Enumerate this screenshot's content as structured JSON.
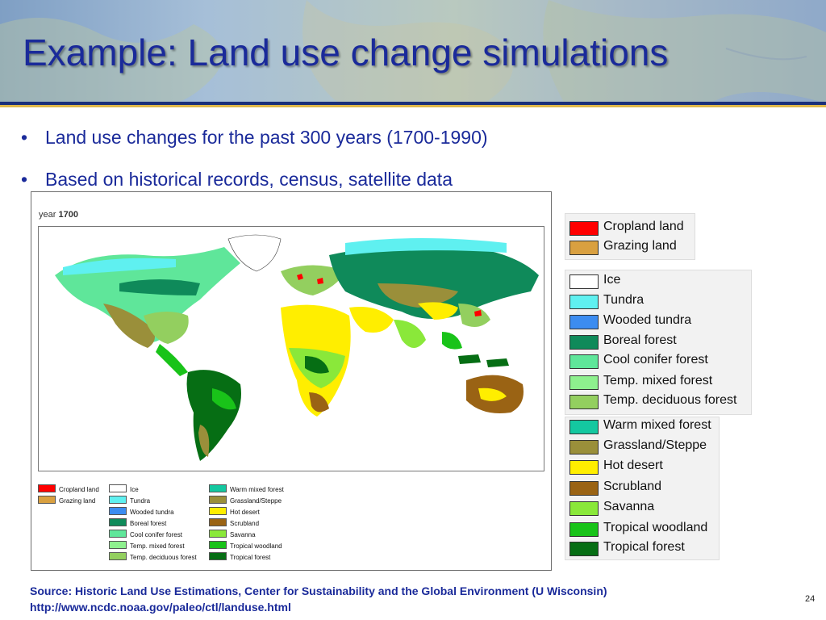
{
  "slide": {
    "title": "Example:  Land use change simulations",
    "bullets": [
      "Land use changes for the past 300 years (1700-1990)",
      "Based on historical records, census, satellite data"
    ],
    "bullet_glyph": "•",
    "source_line_1": "Source:  Historic Land Use Estimations, Center for Sustainability and the Global Environment (U Wisconsin)",
    "source_line_2": "http://www.ncdc.noaa.gov/paleo/ctl/landuse.html",
    "page_number": "24"
  },
  "figure": {
    "year_prefix": "year",
    "year_value": "1700",
    "small_legend": [
      {
        "label": "Cropland land",
        "color": "#ff0000"
      },
      {
        "label": "Grazing land",
        "color": "#d9a040"
      },
      {
        "label": "Ice",
        "color": "#ffffff"
      },
      {
        "label": "Tundra",
        "color": "#5ff0f0"
      },
      {
        "label": "Wooded tundra",
        "color": "#3c8cf0"
      },
      {
        "label": "Boreal forest",
        "color": "#0f8a5a"
      },
      {
        "label": "Cool conifer forest",
        "color": "#5fe69a"
      },
      {
        "label": "Temp. mixed forest",
        "color": "#8ef08e"
      },
      {
        "label": "Temp. deciduous forest",
        "color": "#93cf5f"
      },
      {
        "label": "Warm mixed forest",
        "color": "#14c8a0"
      },
      {
        "label": "Grassland/Steppe",
        "color": "#9a8f3a"
      },
      {
        "label": "Hot desert",
        "color": "#ffee00"
      },
      {
        "label": "Scrubland",
        "color": "#9a6314"
      },
      {
        "label": "Savanna",
        "color": "#8ae83a"
      },
      {
        "label": "Tropical woodland",
        "color": "#19c319"
      },
      {
        "label": "Tropical forest",
        "color": "#066e14"
      }
    ]
  },
  "legend": {
    "items": [
      {
        "label": "Cropland land",
        "color": "#ff0000"
      },
      {
        "label": "Grazing land",
        "color": "#d9a040"
      },
      {
        "label": "Ice",
        "color": "#ffffff"
      },
      {
        "label": "Tundra",
        "color": "#5ff0f0"
      },
      {
        "label": "Wooded tundra",
        "color": "#3c8cf0"
      },
      {
        "label": "Boreal forest",
        "color": "#0f8a5a"
      },
      {
        "label": "Cool conifer forest",
        "color": "#5fe69a"
      },
      {
        "label": "Temp. mixed forest",
        "color": "#8ef08e"
      },
      {
        "label": "Temp. deciduous forest",
        "color": "#93cf5f"
      },
      {
        "label": "Warm mixed forest",
        "color": "#14c8a0"
      },
      {
        "label": "Grassland/Steppe",
        "color": "#9a8f3a"
      },
      {
        "label": "Hot desert",
        "color": "#ffee00"
      },
      {
        "label": "Scrubland",
        "color": "#9a6314"
      },
      {
        "label": "Savanna",
        "color": "#8ae83a"
      },
      {
        "label": "Tropical woodland",
        "color": "#19c319"
      },
      {
        "label": "Tropical forest",
        "color": "#066e14"
      }
    ]
  },
  "colors": {
    "title": "#1a2a9a",
    "header_rule": "#1a2f7a",
    "header_accent": "#e0b84a"
  }
}
